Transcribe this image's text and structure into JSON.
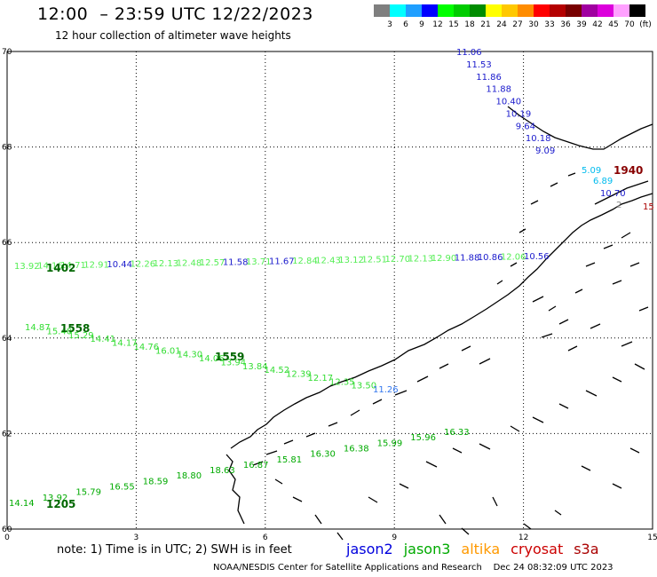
{
  "header": {
    "title": "12:00  – 23:59 UTC 12/22/2023",
    "subtitle": "12 hour collection of altimeter wave heights"
  },
  "legend": {
    "boxes": [
      "#7f7f7f",
      "#00ffff",
      "#1f9fff",
      "#0000ff",
      "#00ff00",
      "#00cc00",
      "#008c00",
      "#ffff00",
      "#ffc800",
      "#ff8c00",
      "#ff0000",
      "#b40000",
      "#780000",
      "#a000a0",
      "#dc00dc",
      "#ffa0ff",
      "#000000"
    ],
    "labels": [
      "3",
      "6",
      "9",
      "12",
      "15",
      "18",
      "21",
      "24",
      "27",
      "30",
      "33",
      "36",
      "39",
      "42",
      "45",
      "70",
      "(ft)"
    ]
  },
  "map": {
    "x_ticks": [
      "0",
      "3",
      "6",
      "9",
      "12",
      "15"
    ],
    "y_ticks": [
      "60",
      "62",
      "64",
      "66",
      "68",
      "70"
    ],
    "land_color": "#000000"
  },
  "tracks": [
    {
      "time": "1205",
      "color": "#00aa00",
      "values": [
        "14.14",
        "13.92",
        "15.79",
        "16.55",
        "18.59",
        "18.80",
        "18.63",
        "16.87",
        "15.81",
        "16.30",
        "16.38",
        "15.99",
        "15.96",
        "16.33"
      ]
    },
    {
      "time": "1558",
      "color": "#33dd33",
      "values": [
        "14.87",
        "15.40",
        "15.29",
        "14.41",
        "14.17",
        "14.76",
        "16.01",
        "14.30",
        "14.06",
        "13.94",
        "13.84",
        "14.52",
        "12.39",
        "12.17",
        "12.35",
        "13.50",
        "11.26"
      ]
    },
    {
      "time": "1559",
      "color": "#33dd33",
      "values": []
    },
    {
      "time": "1402",
      "color": "#55ee55",
      "values": [
        "13.92",
        "14.16",
        "14.71",
        "12.91",
        "10.44",
        "12.26",
        "12.13",
        "12.48",
        "12.57",
        "11.58",
        "13.71",
        "11.67",
        "12.84",
        "12.43",
        "13.12",
        "12.51",
        "12.70",
        "12.13",
        "12.90",
        "11.88",
        "10.86",
        "12.06",
        "10.56"
      ]
    },
    {
      "time": "1940",
      "color": "#1a1acc",
      "values": [
        "11.06",
        "11.53",
        "11.86",
        "11.88",
        "10.40",
        "10.19",
        "9.64",
        "10.18",
        "9.09",
        "5.09",
        "6.89",
        "10.70",
        "2",
        "15"
      ]
    }
  ],
  "footer": {
    "note": "note:  1) Time is in UTC;  2) SWH is in feet",
    "satellites": [
      {
        "name": "jason2",
        "color": "#0000dd"
      },
      {
        "name": "jason3",
        "color": "#00aa00"
      },
      {
        "name": "altika",
        "color": "#ff9900"
      },
      {
        "name": "cryosat",
        "color": "#cc0000"
      },
      {
        "name": "s3a",
        "color": "#aa0000"
      }
    ],
    "credit": "NOAA/NESDIS Center for Satellite Applications and Research    Dec 24 08:32:09 UTC 2023"
  }
}
